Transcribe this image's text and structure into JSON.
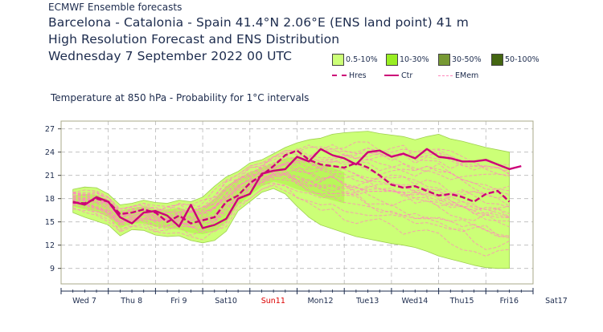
{
  "header": {
    "top": "ECMWF Ensemble forecasts",
    "line1": "Barcelona - Catalonia - Spain 41.4°N 2.06°E (ENS land point) 41 m",
    "line2": "High Resolution Forecast and ENS Distribution",
    "line3": "Wednesday  7 September 2022 00 UTC"
  },
  "legend": {
    "boxes": [
      {
        "label": "0.5-10%",
        "color": "#ccff77"
      },
      {
        "label": "10-30%",
        "color": "#99ee22"
      },
      {
        "label": "30-50%",
        "color": "#779933"
      },
      {
        "label": "50-100%",
        "color": "#446611"
      }
    ],
    "lines": [
      {
        "label": "Hres",
        "color": "#cc0077",
        "style": "dashed"
      },
      {
        "label": "Ctr",
        "color": "#cc0077",
        "style": "solid"
      },
      {
        "label": "EMem",
        "color": "#ff88bb",
        "style": "dashed-thin"
      }
    ]
  },
  "chart_data": {
    "type": "line",
    "title": "Temperature at 850 hPa - Probability for 1°C intervals",
    "x_tick_labels": [
      "Wed 7",
      "Thu 8",
      "Fri 9",
      "Sat10",
      "Sun11",
      "Mon12",
      "Tue13",
      "Wed14",
      "Thu15",
      "Fri16",
      "Sat17"
    ],
    "x_tick_highlight_color": "#dd0000",
    "x_tick_highlight_index": 4,
    "xlim": [
      0,
      10
    ],
    "ylim": [
      7,
      28
    ],
    "y_ticks": [
      9,
      12,
      15,
      18,
      21,
      24,
      27
    ],
    "grid": true,
    "colors": {
      "envelope_outer": "#ccff77",
      "envelope_inner": "#aaee44",
      "hres": "#cc0077",
      "ctr": "#cc0077",
      "members": "#ff88bb"
    },
    "envelope_outer": {
      "x": [
        0.25,
        0.5,
        0.75,
        1.0,
        1.25,
        1.5,
        1.75,
        2.0,
        2.25,
        2.5,
        2.75,
        3.0,
        3.25,
        3.5,
        3.75,
        4.0,
        4.25,
        4.5,
        4.75,
        5.0,
        5.25,
        5.5,
        5.75,
        6.0,
        6.25,
        6.5,
        6.75,
        7.0,
        7.25,
        7.5,
        7.75,
        8.0,
        8.25,
        8.5,
        8.75,
        9.0,
        9.25,
        9.5
      ],
      "upper": [
        19.2,
        19.5,
        19.4,
        18.6,
        17.2,
        17.4,
        17.8,
        17.5,
        17.4,
        17.8,
        17.6,
        18.2,
        19.6,
        20.8,
        21.5,
        22.6,
        23.0,
        23.8,
        24.6,
        25.2,
        25.6,
        25.8,
        26.3,
        26.5,
        26.6,
        26.7,
        26.4,
        26.2,
        26.0,
        25.6,
        26.0,
        26.3,
        25.7,
        25.4,
        25.0,
        24.6,
        24.3,
        24.0
      ],
      "lower": [
        16.2,
        15.6,
        15.1,
        14.6,
        13.2,
        14.0,
        13.9,
        13.3,
        13.1,
        13.2,
        12.6,
        12.3,
        12.6,
        13.8,
        16.4,
        17.6,
        18.8,
        19.3,
        18.6,
        17.0,
        15.6,
        14.6,
        14.1,
        13.6,
        13.1,
        12.8,
        12.5,
        12.2,
        12.0,
        11.7,
        11.2,
        10.6,
        10.2,
        9.8,
        9.4,
        9.1,
        9.0,
        9.0
      ]
    },
    "envelope_inner": {
      "x": [
        0.25,
        0.5,
        0.75,
        1.0,
        1.25,
        1.5,
        1.75,
        2.0,
        2.25,
        2.5,
        2.75,
        3.0,
        3.25,
        3.5,
        3.75,
        4.0,
        4.25,
        4.5,
        4.75,
        5.0,
        5.25,
        5.5,
        5.75,
        6.0
      ],
      "upper": [
        18.4,
        18.6,
        18.5,
        17.8,
        16.4,
        16.8,
        17.0,
        16.6,
        16.6,
        16.8,
        16.4,
        16.8,
        18.0,
        19.6,
        20.6,
        21.4,
        22.0,
        22.6,
        23.2,
        23.4,
        23.0,
        22.5,
        22.0,
        21.4
      ],
      "lower": [
        17.0,
        16.6,
        16.4,
        15.6,
        14.2,
        14.8,
        14.8,
        14.4,
        14.2,
        14.0,
        13.6,
        13.4,
        13.8,
        15.0,
        17.2,
        18.4,
        19.6,
        20.2,
        19.8,
        19.2,
        18.8,
        18.2,
        17.8,
        17.4
      ]
    },
    "series": [
      {
        "name": "Hres",
        "x": [
          0.25,
          0.5,
          0.75,
          1.0,
          1.25,
          1.5,
          1.75,
          2.0,
          2.25,
          2.5,
          2.75,
          3.0,
          3.25,
          3.5,
          3.75,
          4.0,
          4.25,
          4.5,
          4.75,
          5.0,
          5.25,
          5.5,
          5.75,
          6.0,
          6.25,
          6.5,
          6.75,
          7.0,
          7.25,
          7.5,
          7.75,
          8.0,
          8.25,
          8.5,
          8.75,
          9.0,
          9.25,
          9.5
        ],
        "y": [
          17.5,
          17.4,
          18.0,
          17.6,
          16.0,
          16.2,
          16.6,
          16.2,
          15.0,
          15.8,
          14.8,
          15.2,
          15.6,
          17.6,
          18.4,
          20.0,
          21.0,
          22.2,
          23.6,
          24.2,
          23.0,
          22.4,
          22.2,
          22.0,
          22.6,
          22.0,
          21.0,
          19.8,
          19.4,
          19.6,
          19.0,
          18.4,
          18.6,
          18.2,
          17.6,
          18.6,
          19.0,
          17.6
        ]
      },
      {
        "name": "Ctr",
        "x": [
          0.25,
          0.5,
          0.75,
          1.0,
          1.25,
          1.5,
          1.75,
          2.0,
          2.25,
          2.5,
          2.75,
          3.0,
          3.25,
          3.5,
          3.75,
          4.0,
          4.25,
          4.5,
          4.75,
          5.0,
          5.25,
          5.5,
          5.75,
          6.0,
          6.25,
          6.5,
          6.75,
          7.0,
          7.25,
          7.5,
          7.75,
          8.0,
          8.25,
          8.5,
          8.75,
          9.0,
          9.25,
          9.5,
          9.75
        ],
        "y": [
          17.6,
          17.2,
          18.2,
          17.6,
          15.6,
          14.8,
          16.2,
          16.4,
          15.8,
          14.4,
          17.2,
          14.2,
          14.6,
          15.4,
          18.0,
          18.6,
          21.2,
          21.6,
          21.8,
          23.4,
          22.8,
          24.4,
          23.6,
          23.2,
          22.4,
          24.0,
          24.2,
          23.4,
          23.8,
          23.2,
          24.4,
          23.4,
          23.2,
          22.8,
          22.8,
          23.0,
          22.4,
          21.8,
          22.2
        ]
      }
    ]
  }
}
